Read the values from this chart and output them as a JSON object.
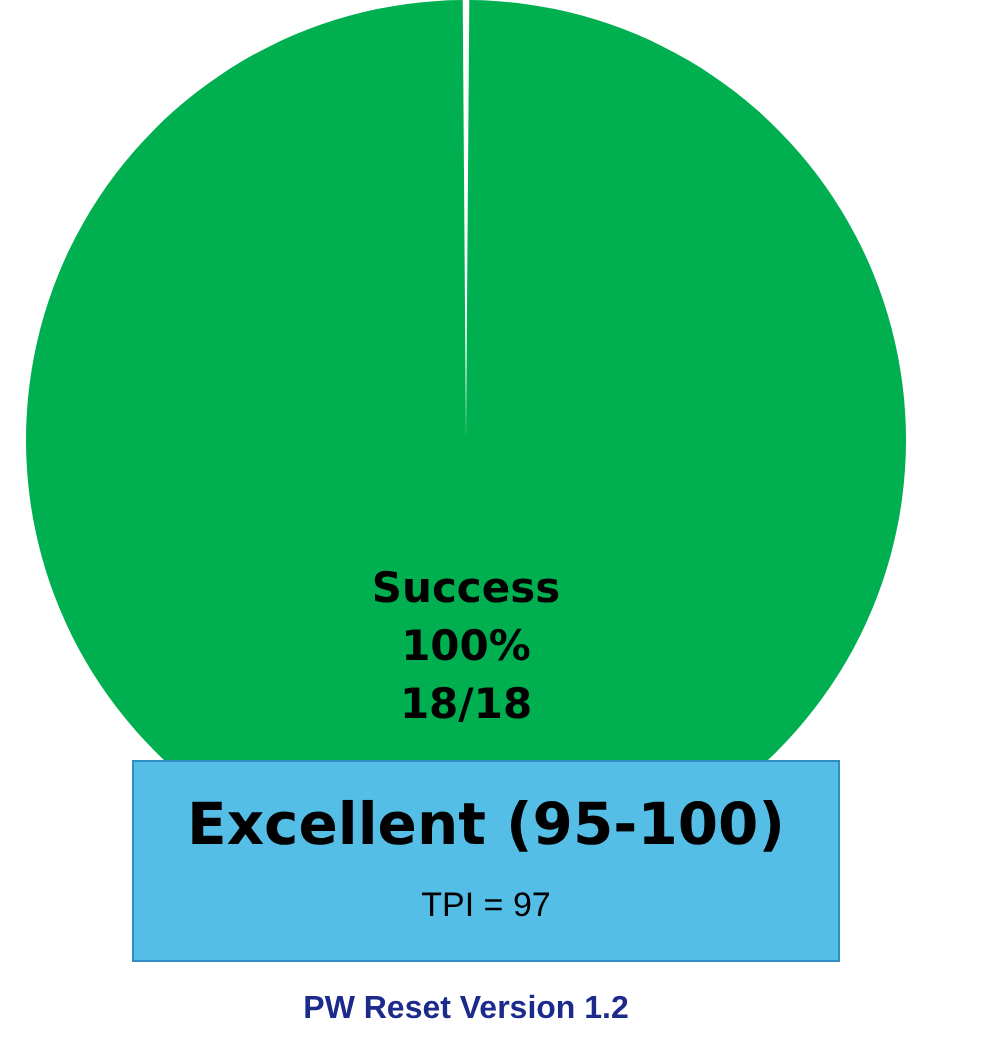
{
  "chart_data": {
    "type": "pie",
    "title": "PW Reset Version 1.2",
    "categories": [
      "Success"
    ],
    "values": [
      100
    ],
    "colors": [
      "#00b050"
    ],
    "value_labels": [
      "100%\n18/18"
    ],
    "annotations": [
      "Excellent (95-100)",
      "TPI = 97"
    ]
  }
}
